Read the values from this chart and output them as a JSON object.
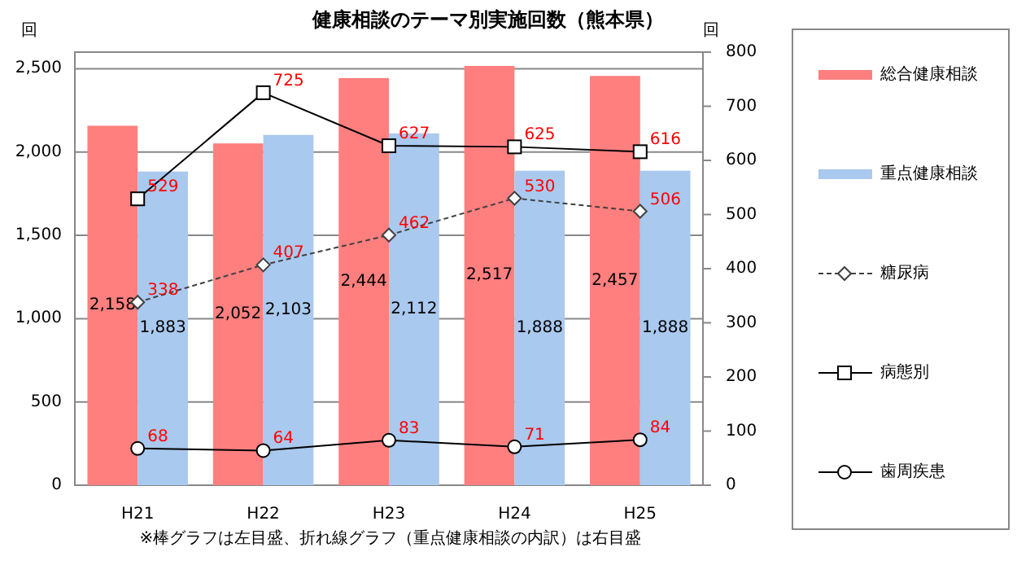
{
  "chart_data": {
    "type": "bar",
    "title": "健康相談のテーマ別実施回数（熊本県）",
    "ylabel": "回",
    "y2label": "回",
    "categories": [
      "H21",
      "H22",
      "H23",
      "H24",
      "H25"
    ],
    "series": [
      {
        "name": "総合健康相談",
        "color": "#ff7f7f",
        "values": [
          2158,
          2052,
          2444,
          2517,
          2457
        ],
        "value_labels": [
          "2,158",
          "2,052",
          "2,444",
          "2,517",
          "2,457"
        ]
      },
      {
        "name": "重点健康相談",
        "color": "#a9c9ef",
        "values": [
          1883,
          2103,
          2112,
          1888,
          1888
        ],
        "value_labels": [
          "1,883",
          "2,103",
          "2,112",
          "1,888",
          "1,888"
        ]
      },
      {
        "name": "糖尿病",
        "type": "line",
        "axis": "y2",
        "color": "#404040",
        "marker": "diamond",
        "line_style": "dashed",
        "values": [
          338,
          407,
          462,
          530,
          506
        ]
      },
      {
        "name": "病態別",
        "type": "line",
        "axis": "y2",
        "color": "#000000",
        "marker": "square",
        "line_style": "solid",
        "values": [
          529,
          725,
          627,
          625,
          616
        ]
      },
      {
        "name": "歯周疾患",
        "type": "line",
        "axis": "y2",
        "color": "#000000",
        "marker": "circle",
        "line_style": "solid",
        "values": [
          68,
          64,
          83,
          71,
          84
        ]
      }
    ],
    "ylim": [
      0,
      2600
    ],
    "yticks": [
      0,
      500,
      {
        "value": 1000,
        "label": "1,000"
      },
      {
        "value": 1500,
        "label": "1,500"
      },
      {
        "value": 2000,
        "label": "2,000"
      },
      {
        "value": 2500,
        "label": "2,500"
      }
    ],
    "y2lim": [
      0,
      800
    ],
    "y2ticks": [
      0,
      100,
      200,
      300,
      400,
      500,
      600,
      700,
      800
    ],
    "grid": "y",
    "legend": "right",
    "data_labels": true,
    "annotations": [
      "※棒グラフは左目盛、折れ線グラフ（重点健康相談の内訳）は右目盛"
    ]
  }
}
